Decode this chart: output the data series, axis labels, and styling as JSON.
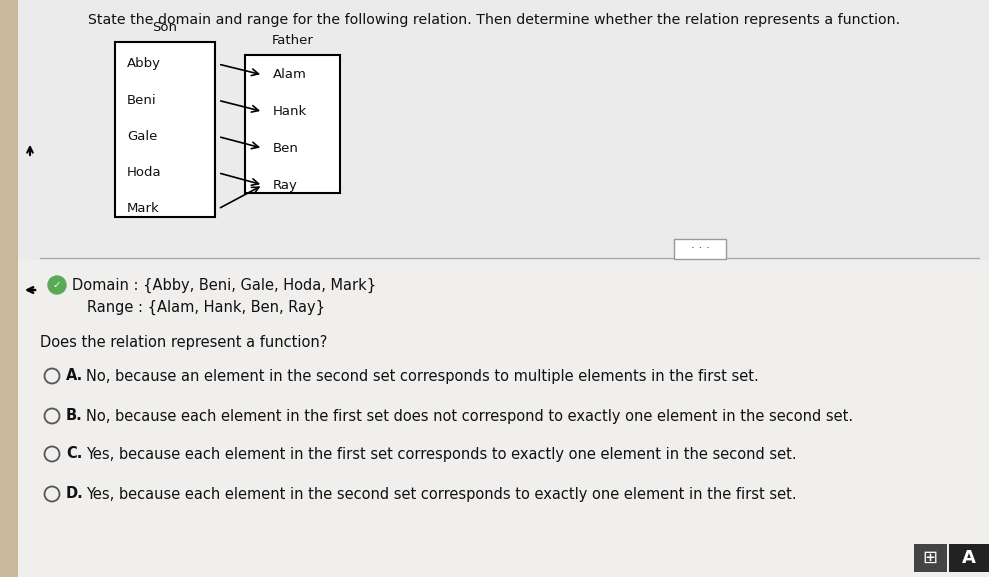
{
  "title": "State the domain and range for the following relation. Then determine whether the relation represents a function.",
  "bg_color": "#e8e8e8",
  "lower_bg_color": "#f0efee",
  "son_label": "Son",
  "father_label": "Father",
  "son_items": [
    "Abby",
    "Beni",
    "Gale",
    "Hoda",
    "Mark"
  ],
  "father_items": [
    "Alam",
    "Hank",
    "Ben",
    "Ray"
  ],
  "arrows": [
    [
      0,
      0
    ],
    [
      1,
      1
    ],
    [
      2,
      2
    ],
    [
      3,
      3
    ],
    [
      4,
      3
    ]
  ],
  "domain_text": "Domain : {Abby, Beni, Gale, Hoda, Mark}",
  "range_text": "Range : {Alam, Hank, Ben, Ray}",
  "question": "Does the relation represent a function?",
  "options": [
    {
      "label": "A.",
      "text": "No, because an element in the second set corresponds to multiple elements in the first set."
    },
    {
      "label": "B.",
      "text": "No, because each element in the first set does not correspond to exactly one element in the second set."
    },
    {
      "label": "C.",
      "text": "Yes, because each element in the first set corresponds to exactly one element in the second set."
    },
    {
      "label": "D.",
      "text": "Yes, because each element in the second set corresponds to exactly one element in the first set."
    }
  ],
  "text_color": "#111111",
  "blue_text_color": "#1a1aaa",
  "circle_color": "#555555"
}
